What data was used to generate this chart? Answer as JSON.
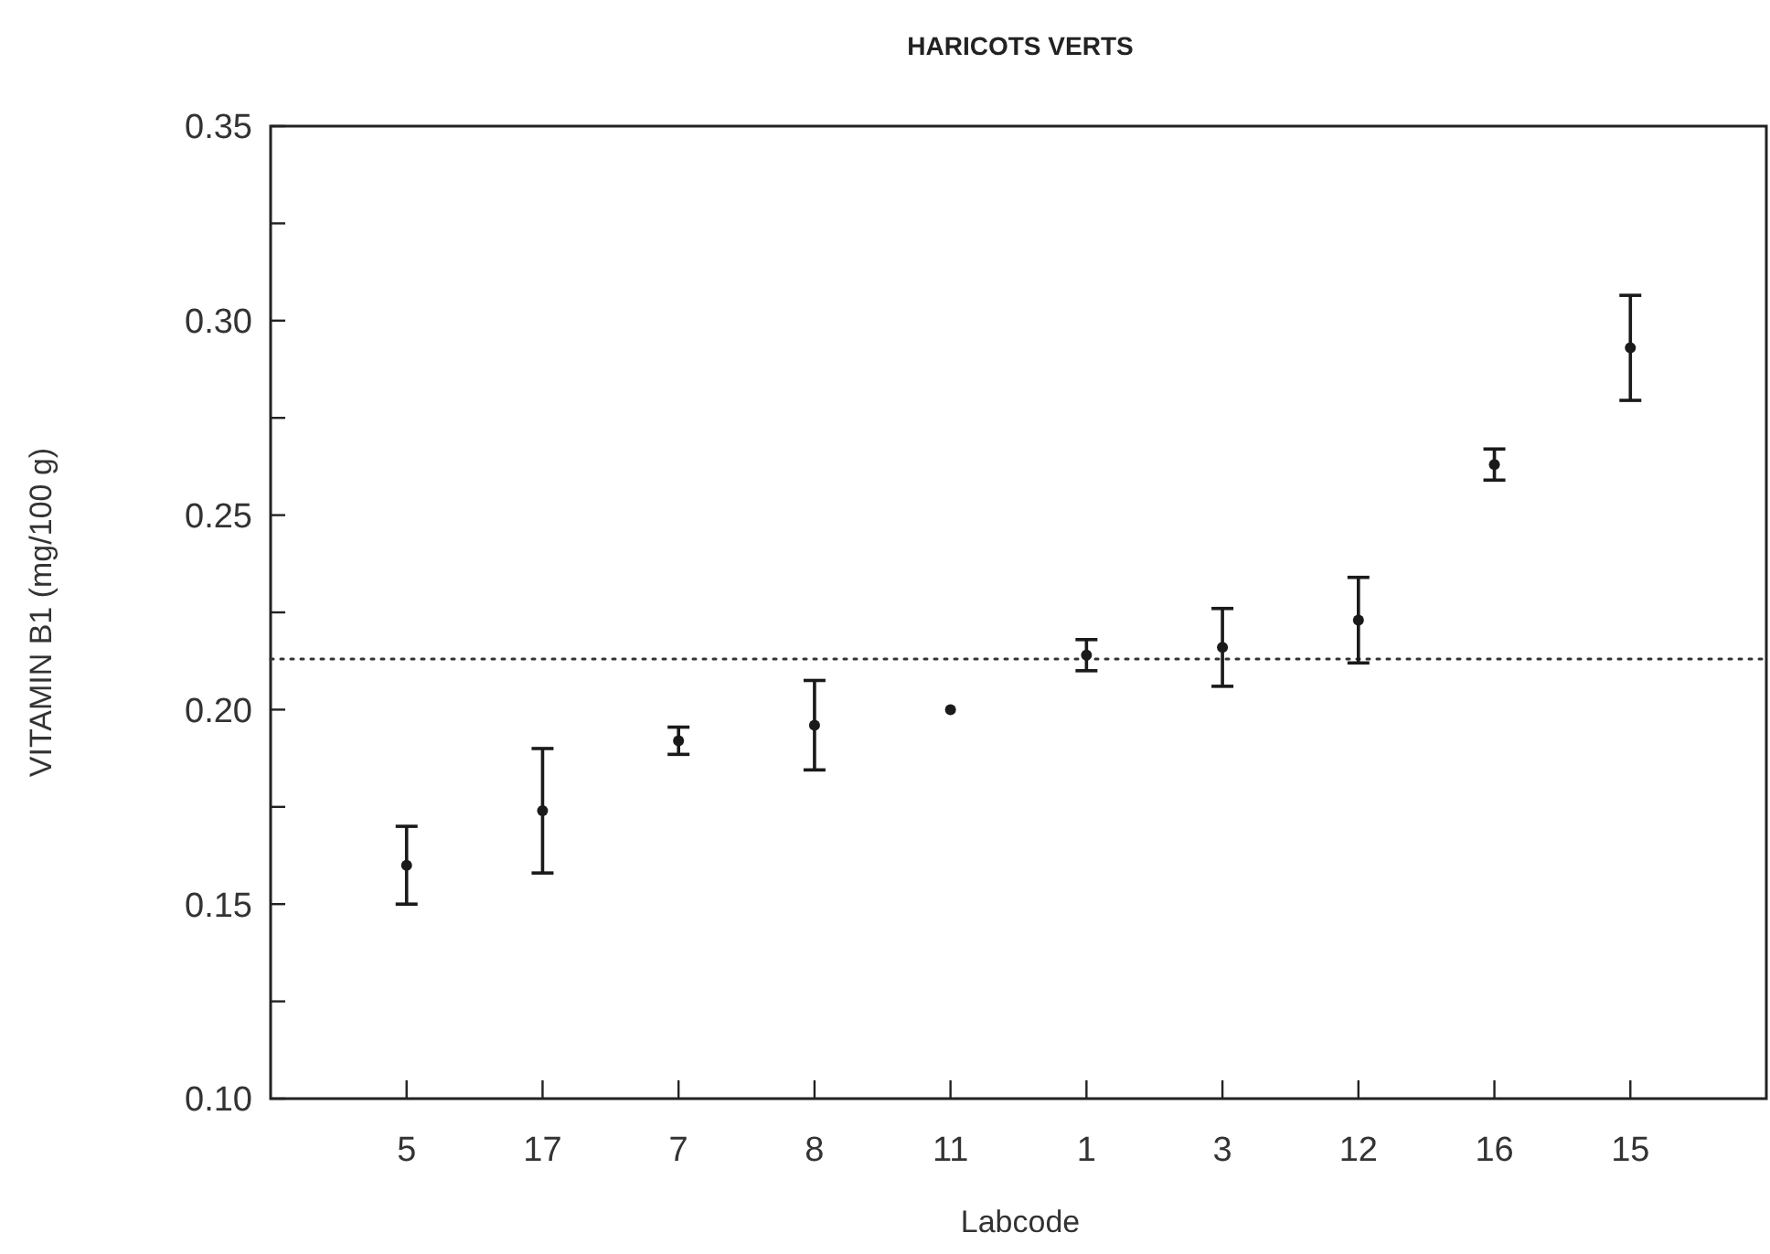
{
  "chart_data": {
    "type": "scatter",
    "title": "HARICOTS  VERTS",
    "xlabel": "Labcode",
    "ylabel": "VITAMIN  B1  (mg/100  g)",
    "categories": [
      "5",
      "17",
      "7",
      "8",
      "11",
      "1",
      "3",
      "12",
      "16",
      "15"
    ],
    "values": [
      0.16,
      0.174,
      0.192,
      0.196,
      0.2,
      0.214,
      0.216,
      0.223,
      0.263,
      0.293
    ],
    "errors": [
      0.01,
      0.016,
      0.0035,
      0.0115,
      null,
      0.004,
      0.01,
      0.011,
      0.004,
      0.0135
    ],
    "color": "#1a1a1a",
    "marker": "circle",
    "ylim": [
      0.1,
      0.35
    ],
    "yticks": [
      {
        "value": 0.1,
        "label": "0.10"
      },
      {
        "value": 0.125,
        "label": null
      },
      {
        "value": 0.15,
        "label": "0.15"
      },
      {
        "value": 0.175,
        "label": null
      },
      {
        "value": 0.2,
        "label": "0.20"
      },
      {
        "value": 0.225,
        "label": null
      },
      {
        "value": 0.25,
        "label": "0.25"
      },
      {
        "value": 0.275,
        "label": null
      },
      {
        "value": 0.3,
        "label": "0.30"
      },
      {
        "value": 0.325,
        "label": null
      },
      {
        "value": 0.35,
        "label": "0.35"
      }
    ],
    "ref_lines": [
      {
        "axis": "y",
        "value": 0.213,
        "line_style": "dotted"
      }
    ],
    "line_style": "none"
  }
}
